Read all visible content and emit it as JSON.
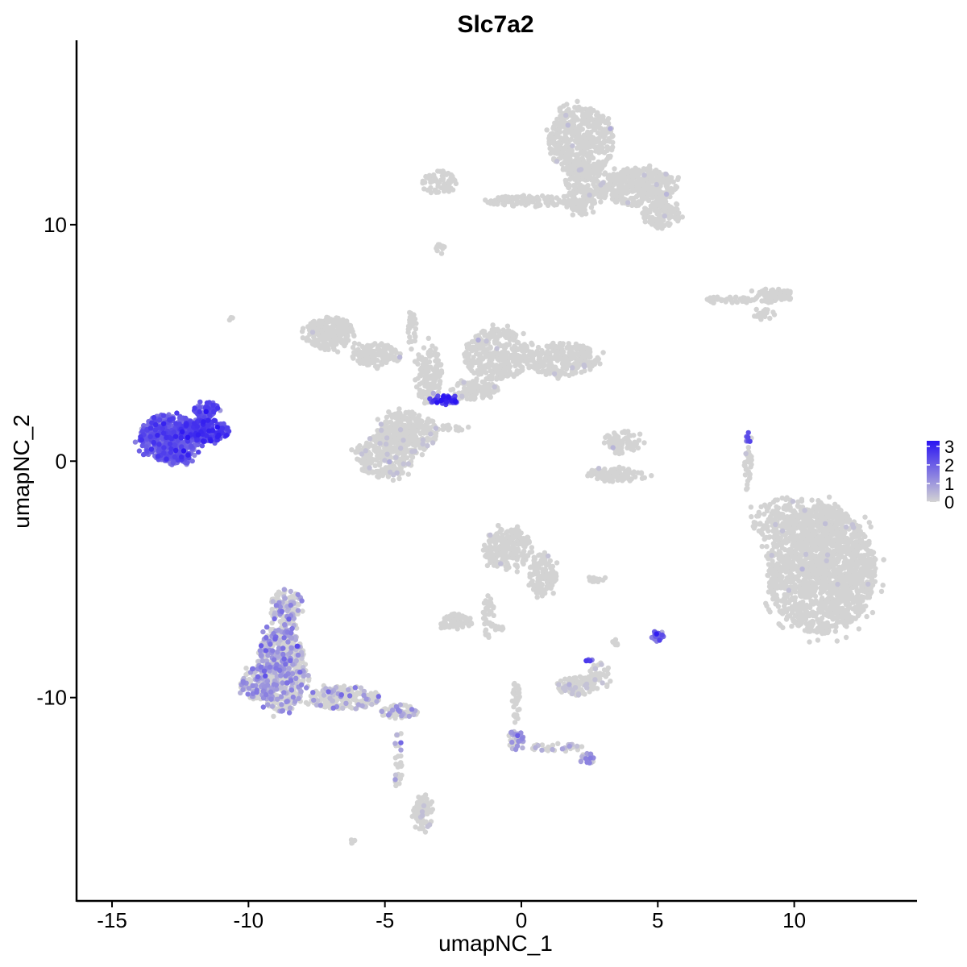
{
  "chart_data": {
    "type": "scatter",
    "title": "Slc7a2",
    "xlabel": "umapNC_1",
    "ylabel": "umapNC_2",
    "xlim": [
      -16.3,
      14.5
    ],
    "ylim": [
      -18.6,
      17.8
    ],
    "x_ticks": [
      -15,
      -10,
      -5,
      0,
      5,
      10
    ],
    "y_ticks": [
      -10,
      0,
      10
    ],
    "x_tick_labels": [
      "-15",
      "-10",
      "-5",
      "0",
      "5",
      "10"
    ],
    "y_tick_labels": [
      "-10",
      "0",
      "10"
    ],
    "grid": false,
    "legend": {
      "placement": "right",
      "labels": [
        "3",
        "2",
        "1",
        "0"
      ],
      "min": 0,
      "max": 3.3,
      "color_low": "#d3d3d3",
      "color_high": "#2a14f2"
    },
    "clusters": [
      {
        "cx": 11.0,
        "cy": -4.6,
        "rx": 2.0,
        "ry": 2.7,
        "n": 1600,
        "expr": 0.0,
        "frac": 0.01
      },
      {
        "cx": 10.0,
        "cy": -2.5,
        "rx": 1.6,
        "ry": 1.0,
        "n": 250,
        "expr": 0.0,
        "frac": 0.01
      },
      {
        "cx": 2.2,
        "cy": 13.5,
        "rx": 1.2,
        "ry": 1.5,
        "n": 500,
        "expr": 0.0,
        "frac": 0.01
      },
      {
        "cx": 2.3,
        "cy": 11.5,
        "rx": 0.7,
        "ry": 1.1,
        "n": 200,
        "expr": 0.0,
        "frac": 0.01
      },
      {
        "cx": 4.3,
        "cy": 11.6,
        "rx": 1.4,
        "ry": 0.8,
        "n": 380,
        "expr": 0.0,
        "frac": 0.01
      },
      {
        "cx": 5.1,
        "cy": 10.4,
        "rx": 0.7,
        "ry": 0.6,
        "n": 120,
        "expr": 0.0,
        "frac": 0.01
      },
      {
        "cx": 0.5,
        "cy": 11.0,
        "rx": 1.8,
        "ry": 0.25,
        "n": 110,
        "expr": 0.0,
        "frac": 0.01
      },
      {
        "cx": -3.0,
        "cy": 11.8,
        "rx": 0.7,
        "ry": 0.5,
        "n": 60,
        "expr": 0.0,
        "frac": 0.02
      },
      {
        "cx": -3.0,
        "cy": 9.0,
        "rx": 0.2,
        "ry": 0.2,
        "n": 10,
        "expr": 0.0,
        "frac": 0.0
      },
      {
        "cx": 9.2,
        "cy": 7.0,
        "rx": 0.8,
        "ry": 0.3,
        "n": 80,
        "expr": 0.0,
        "frac": 0.02
      },
      {
        "cx": 7.5,
        "cy": 6.8,
        "rx": 1.1,
        "ry": 0.15,
        "n": 40,
        "expr": 0.0,
        "frac": 0.0
      },
      {
        "cx": 8.8,
        "cy": 6.2,
        "rx": 0.5,
        "ry": 0.25,
        "n": 20,
        "expr": 0.0,
        "frac": 0.0
      },
      {
        "cx": -7.0,
        "cy": 5.4,
        "rx": 0.9,
        "ry": 0.7,
        "n": 240,
        "expr": 0.0,
        "frac": 0.01
      },
      {
        "cx": -5.3,
        "cy": 4.5,
        "rx": 0.9,
        "ry": 0.5,
        "n": 140,
        "expr": 0.0,
        "frac": 0.01
      },
      {
        "cx": -4.2,
        "cy": 1.2,
        "rx": 1.1,
        "ry": 0.9,
        "n": 300,
        "expr": 0.0,
        "frac": 0.04
      },
      {
        "cx": -5.0,
        "cy": 0.2,
        "rx": 1.1,
        "ry": 0.9,
        "n": 260,
        "expr": 0.0,
        "frac": 0.04
      },
      {
        "cx": -3.4,
        "cy": 3.7,
        "rx": 0.5,
        "ry": 1.3,
        "n": 140,
        "expr": 0.0,
        "frac": 0.02
      },
      {
        "cx": -4.0,
        "cy": 5.6,
        "rx": 0.15,
        "ry": 0.9,
        "n": 30,
        "expr": 0.0,
        "frac": 0.0
      },
      {
        "cx": -0.9,
        "cy": 4.5,
        "rx": 1.2,
        "ry": 1.1,
        "n": 330,
        "expr": 0.0,
        "frac": 0.01
      },
      {
        "cx": 1.5,
        "cy": 4.3,
        "rx": 1.4,
        "ry": 0.7,
        "n": 280,
        "expr": 0.0,
        "frac": 0.01
      },
      {
        "cx": -1.7,
        "cy": 3.0,
        "rx": 0.9,
        "ry": 0.4,
        "n": 110,
        "expr": 0.0,
        "frac": 0.02
      },
      {
        "cx": -2.8,
        "cy": 2.6,
        "rx": 0.7,
        "ry": 0.18,
        "n": 40,
        "expr": 2.6,
        "frac": 0.95
      },
      {
        "cx": -2.8,
        "cy": 1.4,
        "rx": 1.0,
        "ry": 0.12,
        "n": 20,
        "expr": 0.0,
        "frac": 0.0
      },
      {
        "cx": 3.7,
        "cy": 0.8,
        "rx": 0.7,
        "ry": 0.5,
        "n": 80,
        "expr": 0.0,
        "frac": 0.01
      },
      {
        "cx": 3.5,
        "cy": -0.6,
        "rx": 1.1,
        "ry": 0.3,
        "n": 100,
        "expr": 0.0,
        "frac": 0.02
      },
      {
        "cx": 8.3,
        "cy": -0.3,
        "rx": 0.15,
        "ry": 1.0,
        "n": 30,
        "expr": 0.0,
        "frac": 0.05
      },
      {
        "cx": 8.3,
        "cy": 1.0,
        "rx": 0.12,
        "ry": 0.25,
        "n": 8,
        "expr": 1.8,
        "frac": 0.8
      },
      {
        "cx": -0.5,
        "cy": -3.7,
        "rx": 0.9,
        "ry": 0.9,
        "n": 220,
        "expr": 0.0,
        "frac": 0.01
      },
      {
        "cx": 0.8,
        "cy": -4.8,
        "rx": 0.5,
        "ry": 0.9,
        "n": 120,
        "expr": 0.0,
        "frac": 0.01
      },
      {
        "cx": -1.2,
        "cy": -6.5,
        "rx": 0.2,
        "ry": 1.0,
        "n": 40,
        "expr": 0.0,
        "frac": 0.0
      },
      {
        "cx": -2.4,
        "cy": -6.8,
        "rx": 0.6,
        "ry": 0.35,
        "n": 70,
        "expr": 0.0,
        "frac": 0.02
      },
      {
        "cx": 2.7,
        "cy": -5.0,
        "rx": 0.4,
        "ry": 0.1,
        "n": 15,
        "expr": 0.0,
        "frac": 0.0
      },
      {
        "cx": 5.0,
        "cy": -7.4,
        "rx": 0.25,
        "ry": 0.3,
        "n": 20,
        "expr": 1.8,
        "frac": 0.9
      },
      {
        "cx": 3.4,
        "cy": -7.7,
        "rx": 0.15,
        "ry": 0.2,
        "n": 6,
        "expr": 0.0,
        "frac": 0.0
      },
      {
        "cx": -0.8,
        "cy": -7.0,
        "rx": 0.3,
        "ry": 0.15,
        "n": 8,
        "expr": 0.0,
        "frac": 0.0
      },
      {
        "cx": 2.0,
        "cy": -9.5,
        "rx": 0.7,
        "ry": 0.4,
        "n": 90,
        "expr": 0.0,
        "frac": 0.15
      },
      {
        "cx": 2.8,
        "cy": -9.1,
        "rx": 0.5,
        "ry": 0.6,
        "n": 40,
        "expr": 0.0,
        "frac": 0.15
      },
      {
        "cx": 2.5,
        "cy": -8.5,
        "rx": 0.2,
        "ry": 0.15,
        "n": 6,
        "expr": 2.0,
        "frac": 0.9
      },
      {
        "cx": -0.2,
        "cy": -10.2,
        "rx": 0.15,
        "ry": 0.9,
        "n": 30,
        "expr": 0.0,
        "frac": 0.05
      },
      {
        "cx": -0.2,
        "cy": -11.8,
        "rx": 0.3,
        "ry": 0.4,
        "n": 40,
        "expr": 1.0,
        "frac": 0.6
      },
      {
        "cx": 1.3,
        "cy": -12.1,
        "rx": 1.0,
        "ry": 0.18,
        "n": 30,
        "expr": 0.6,
        "frac": 0.3
      },
      {
        "cx": 2.4,
        "cy": -12.6,
        "rx": 0.25,
        "ry": 0.3,
        "n": 20,
        "expr": 1.0,
        "frac": 0.5
      },
      {
        "cx": -8.8,
        "cy": -8.8,
        "rx": 0.9,
        "ry": 1.8,
        "n": 620,
        "expr": 0.9,
        "frac": 0.38
      },
      {
        "cx": -9.6,
        "cy": -9.4,
        "rx": 0.7,
        "ry": 0.7,
        "n": 140,
        "expr": 0.9,
        "frac": 0.35
      },
      {
        "cx": -8.6,
        "cy": -6.2,
        "rx": 0.6,
        "ry": 0.8,
        "n": 120,
        "expr": 0.9,
        "frac": 0.35
      },
      {
        "cx": -6.5,
        "cy": -10.0,
        "rx": 1.3,
        "ry": 0.5,
        "n": 220,
        "expr": 0.8,
        "frac": 0.2
      },
      {
        "cx": -4.5,
        "cy": -10.6,
        "rx": 0.7,
        "ry": 0.3,
        "n": 70,
        "expr": 0.8,
        "frac": 0.25
      },
      {
        "cx": -4.5,
        "cy": -12.6,
        "rx": 0.15,
        "ry": 1.6,
        "n": 30,
        "expr": 0.8,
        "frac": 0.15
      },
      {
        "cx": -3.6,
        "cy": -14.9,
        "rx": 0.35,
        "ry": 0.7,
        "n": 80,
        "expr": 0.0,
        "frac": 0.03
      },
      {
        "cx": -6.2,
        "cy": -16.1,
        "rx": 0.15,
        "ry": 0.1,
        "n": 5,
        "expr": 0.0,
        "frac": 0.0
      },
      {
        "cx": -12.9,
        "cy": 1.0,
        "rx": 1.1,
        "ry": 1.0,
        "n": 560,
        "expr": 1.9,
        "frac": 1.0
      },
      {
        "cx": -11.6,
        "cy": 1.3,
        "rx": 0.9,
        "ry": 0.5,
        "n": 200,
        "expr": 2.4,
        "frac": 1.0
      },
      {
        "cx": -11.5,
        "cy": 2.2,
        "rx": 0.5,
        "ry": 0.3,
        "n": 60,
        "expr": 2.2,
        "frac": 1.0
      },
      {
        "cx": -12.6,
        "cy": 0.1,
        "rx": 0.5,
        "ry": 0.25,
        "n": 60,
        "expr": 1.7,
        "frac": 1.0
      },
      {
        "cx": -10.6,
        "cy": 6.0,
        "rx": 0.1,
        "ry": 0.1,
        "n": 3,
        "expr": 0.0,
        "frac": 0.0
      }
    ]
  }
}
